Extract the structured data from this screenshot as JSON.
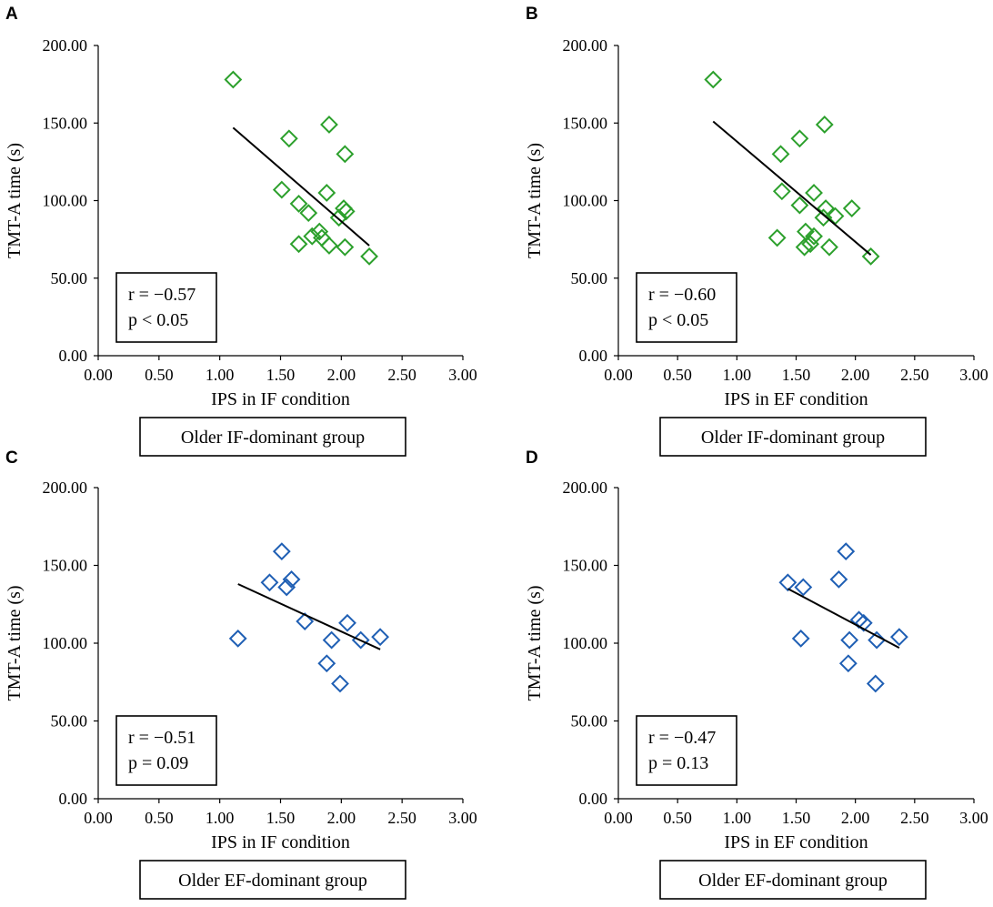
{
  "chart_data": [
    {
      "panel": "A",
      "type": "scatter",
      "xlabel": "IPS in IF condition",
      "ylabel": "TMT-A time (s)",
      "group": "Older IF-dominant group",
      "stats": [
        "r = −0.57",
        "p < 0.05"
      ],
      "marker_color": "#2ca02c",
      "xlim": [
        0,
        3
      ],
      "ylim": [
        0,
        200
      ],
      "xticks": [
        "0.00",
        "0.50",
        "1.00",
        "1.50",
        "2.00",
        "2.50",
        "3.00"
      ],
      "yticks": [
        "0.00",
        "50.00",
        "100.00",
        "150.00",
        "200.00"
      ],
      "x": [
        1.11,
        1.57,
        1.51,
        1.9,
        2.03,
        1.65,
        1.73,
        1.88,
        2.02,
        2.04,
        1.98,
        1.82,
        1.76,
        1.65,
        1.84,
        1.9,
        2.03,
        2.23
      ],
      "y": [
        178,
        140,
        107,
        149,
        130,
        98,
        92,
        105,
        95,
        93,
        89,
        80,
        77,
        72,
        76,
        71,
        70,
        64
      ],
      "trend": {
        "x": [
          1.11,
          2.23
        ],
        "y": [
          147,
          71
        ]
      }
    },
    {
      "panel": "B",
      "type": "scatter",
      "xlabel": "IPS in EF condition",
      "ylabel": "TMT-A time (s)",
      "group": "Older IF-dominant group",
      "stats": [
        "r = −0.60",
        "p < 0.05"
      ],
      "marker_color": "#2ca02c",
      "xlim": [
        0,
        3
      ],
      "ylim": [
        0,
        200
      ],
      "xticks": [
        "0.00",
        "0.50",
        "1.00",
        "1.50",
        "2.00",
        "2.50",
        "3.00"
      ],
      "yticks": [
        "0.00",
        "50.00",
        "100.00",
        "150.00",
        "200.00"
      ],
      "x": [
        0.8,
        1.74,
        1.53,
        1.37,
        1.38,
        1.65,
        1.53,
        1.75,
        1.97,
        1.83,
        1.73,
        1.58,
        1.65,
        1.34,
        1.62,
        1.57,
        1.78,
        2.13
      ],
      "y": [
        178,
        149,
        140,
        130,
        106,
        105,
        97,
        95,
        95,
        90,
        89,
        80,
        77,
        76,
        72,
        70,
        70,
        64
      ],
      "trend": {
        "x": [
          0.8,
          2.13
        ],
        "y": [
          151,
          65
        ]
      }
    },
    {
      "panel": "C",
      "type": "scatter",
      "xlabel": "IPS in IF condition",
      "ylabel": "TMT-A time (s)",
      "group": "Older EF-dominant group",
      "stats": [
        "r = −0.51",
        "p = 0.09"
      ],
      "marker_color": "#1f5fb4",
      "xlim": [
        0,
        3
      ],
      "ylim": [
        0,
        200
      ],
      "xticks": [
        "0.00",
        "0.50",
        "1.00",
        "1.50",
        "2.00",
        "2.50",
        "3.00"
      ],
      "yticks": [
        "0.00",
        "50.00",
        "100.00",
        "150.00",
        "200.00"
      ],
      "x": [
        1.51,
        1.59,
        1.41,
        1.55,
        1.7,
        2.05,
        1.15,
        2.16,
        2.32,
        1.92,
        1.88,
        1.99
      ],
      "y": [
        159,
        141,
        139,
        136,
        114,
        113,
        103,
        102,
        104,
        102,
        87,
        74
      ],
      "trend": {
        "x": [
          1.15,
          2.32
        ],
        "y": [
          138,
          96
        ]
      }
    },
    {
      "panel": "D",
      "type": "scatter",
      "xlabel": "IPS in EF condition",
      "ylabel": "TMT-A time (s)",
      "group": "Older EF-dominant group",
      "stats": [
        "r = −0.47",
        "p = 0.13"
      ],
      "marker_color": "#1f5fb4",
      "xlim": [
        0,
        3
      ],
      "ylim": [
        0,
        200
      ],
      "xticks": [
        "0.00",
        "0.50",
        "1.00",
        "1.50",
        "2.00",
        "2.50",
        "3.00"
      ],
      "yticks": [
        "0.00",
        "50.00",
        "100.00",
        "150.00",
        "200.00"
      ],
      "x": [
        1.92,
        1.86,
        1.43,
        1.56,
        2.03,
        2.07,
        1.54,
        1.95,
        2.18,
        2.37,
        1.94,
        2.17
      ],
      "y": [
        159,
        141,
        139,
        136,
        115,
        113,
        103,
        102,
        102,
        104,
        87,
        74
      ],
      "trend": {
        "x": [
          1.43,
          2.37
        ],
        "y": [
          135,
          97
        ]
      }
    }
  ]
}
